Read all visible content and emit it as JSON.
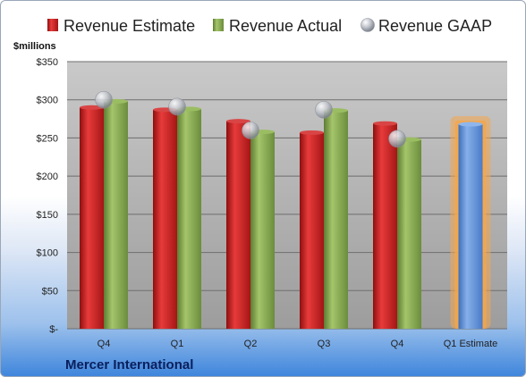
{
  "chart_data": {
    "type": "bar",
    "unit_label": "$millions",
    "company": "Mercer International",
    "categories": [
      "Q4",
      "Q1",
      "Q2",
      "Q3",
      "Q4",
      "Q1 Estimate"
    ],
    "series": [
      {
        "name": "Revenue Estimate",
        "type": "bar",
        "color": "#cc2020",
        "values": [
          290,
          287,
          272,
          257,
          269,
          null
        ]
      },
      {
        "name": "Revenue Actual",
        "type": "bar",
        "color": "#8aae52",
        "values": [
          298,
          288,
          258,
          286,
          248,
          null
        ]
      },
      {
        "name": "Revenue GAAP",
        "type": "scatter",
        "color": "#b8bcc4",
        "values": [
          300,
          291,
          260,
          287,
          249,
          null
        ]
      },
      {
        "name": "",
        "type": "bar",
        "color": "#5b8fd6",
        "highlight_color": "#f5a64a",
        "values": [
          null,
          null,
          null,
          null,
          null,
          268
        ]
      }
    ],
    "ylim": [
      0,
      350
    ],
    "y_ticks": [
      0,
      50,
      100,
      150,
      200,
      250,
      300,
      350
    ],
    "y_tick_labels": [
      "$-",
      "$50",
      "$100",
      "$150",
      "$200",
      "$250",
      "$300",
      "$350"
    ],
    "grid": true,
    "legend_position": "top",
    "plot_background": "#b3b3b3"
  }
}
